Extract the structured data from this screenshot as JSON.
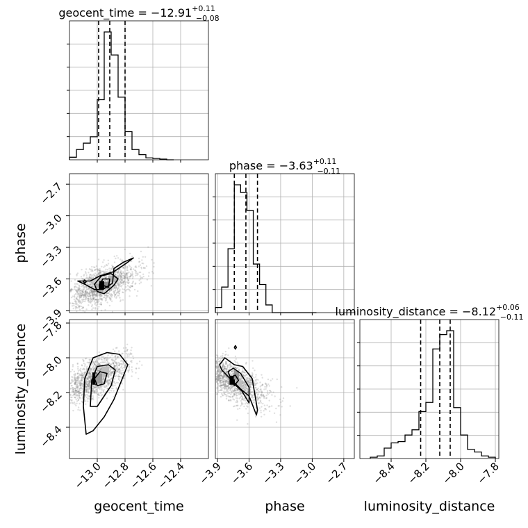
{
  "chart_data": {
    "type": "corner",
    "parameters": [
      "geocent_time",
      "phase",
      "luminosity_distance"
    ],
    "titles": [
      {
        "param": "geocent_time",
        "label": "geocent_time = −12.91",
        "plus": "+0.11",
        "minus": "−0.08",
        "median": -12.91,
        "q_low": -12.99,
        "q_high": -12.8
      },
      {
        "param": "phase",
        "label": "phase = −3.63",
        "plus": "+0.11",
        "minus": "−0.11",
        "median": -3.63,
        "q_low": -3.74,
        "q_high": -3.52
      },
      {
        "param": "luminosity_distance",
        "label": "luminosity_distance = −8.12",
        "plus": "+0.06",
        "minus": "−0.11",
        "median": -8.12,
        "q_low": -8.23,
        "q_high": -8.06
      }
    ],
    "ranges": {
      "geocent_time": [
        -13.2,
        -12.2
      ],
      "phase": [
        -3.92,
        -2.6
      ],
      "luminosity_distance": [
        -8.58,
        -7.78
      ]
    },
    "ticks": {
      "geocent_time": [
        -13.0,
        -12.8,
        -12.6,
        -12.4
      ],
      "phase": [
        -3.9,
        -3.6,
        -3.3,
        -3.0,
        -2.7
      ],
      "luminosity_distance": [
        -8.4,
        -8.2,
        -8.0,
        -7.8
      ]
    },
    "tick_labels": {
      "geocent_time": [
        "−13.0",
        "−12.8",
        "−12.6",
        "−12.4"
      ],
      "phase": [
        "−3.9",
        "−3.6",
        "−3.3",
        "−3.0",
        "−2.7"
      ],
      "luminosity_distance": [
        "−8.4",
        "−8.2",
        "−8.0",
        "−7.8"
      ]
    },
    "axis_labels": {
      "geocent_time": "geocent_time",
      "phase": "phase",
      "luminosity_distance": "luminosity_distance"
    },
    "histograms": {
      "geocent_time": {
        "edges": [
          -13.2,
          -13.15,
          -13.1,
          -13.05,
          -13.0,
          -12.95,
          -12.9,
          -12.85,
          -12.8,
          -12.75,
          -12.7,
          -12.65,
          -12.6,
          -12.55,
          -12.5,
          -12.45
        ],
        "counts": [
          0.02,
          0.08,
          0.13,
          0.18,
          0.47,
          1.0,
          0.82,
          0.49,
          0.22,
          0.08,
          0.04,
          0.015,
          0.01,
          0.005,
          0.0
        ]
      },
      "phase": {
        "edges": [
          -3.92,
          -3.86,
          -3.8,
          -3.74,
          -3.68,
          -3.62,
          -3.56,
          -3.5,
          -3.44,
          -3.38,
          -3.32,
          -3.26,
          -3.2,
          -3.14,
          -3.08,
          -3.02,
          -2.96
        ],
        "counts": [
          0.04,
          0.2,
          0.5,
          1.0,
          0.94,
          0.8,
          0.38,
          0.22,
          0.06,
          0.0,
          0.0,
          0.0,
          0.0,
          0.0,
          0.0,
          0.0
        ]
      },
      "luminosity_distance": {
        "edges": [
          -8.52,
          -8.48,
          -8.44,
          -8.4,
          -8.36,
          -8.32,
          -8.28,
          -8.24,
          -8.2,
          -8.16,
          -8.12,
          -8.08,
          -8.04,
          -8.0,
          -7.96,
          -7.92,
          -7.88,
          -7.84,
          -7.8
        ],
        "counts": [
          0.01,
          0.02,
          0.08,
          0.12,
          0.13,
          0.18,
          0.22,
          0.36,
          0.43,
          0.84,
          0.95,
          0.98,
          0.39,
          0.18,
          0.07,
          0.05,
          0.02,
          0.01
        ]
      }
    },
    "pairs": [
      {
        "x": "geocent_time",
        "y": "phase",
        "dense_cells": [
          {
            "x": -12.97,
            "y": -3.66,
            "w": 0.04,
            "h": 0.08,
            "shade": 0.0
          },
          {
            "x": -12.93,
            "y": -3.66,
            "w": 0.04,
            "h": 0.06,
            "shade": 0.55
          },
          {
            "x": -12.89,
            "y": -3.6,
            "w": 0.06,
            "h": 0.06,
            "shade": 0.7
          },
          {
            "x": -13.01,
            "y": -3.62,
            "w": 0.05,
            "h": 0.05,
            "shade": 0.8
          }
        ],
        "contours": [
          [
            [
              -13.14,
              -3.62
            ],
            [
              -13.05,
              -3.62
            ],
            [
              -12.98,
              -3.57
            ],
            [
              -12.88,
              -3.53
            ],
            [
              -12.79,
              -3.45
            ],
            [
              -12.74,
              -3.4
            ],
            [
              -12.81,
              -3.44
            ],
            [
              -12.88,
              -3.5
            ],
            [
              -12.89,
              -3.64
            ],
            [
              -12.96,
              -3.7
            ],
            [
              -13.02,
              -3.7
            ],
            [
              -13.09,
              -3.65
            ],
            [
              -13.14,
              -3.62
            ]
          ],
          [
            [
              -13.02,
              -3.65
            ],
            [
              -12.97,
              -3.57
            ],
            [
              -12.9,
              -3.55
            ],
            [
              -12.85,
              -3.6
            ],
            [
              -12.88,
              -3.66
            ],
            [
              -12.95,
              -3.74
            ],
            [
              -13.0,
              -3.72
            ],
            [
              -13.02,
              -3.65
            ]
          ],
          [
            [
              -12.98,
              -3.65
            ],
            [
              -12.96,
              -3.6
            ],
            [
              -12.91,
              -3.6
            ],
            [
              -12.92,
              -3.68
            ],
            [
              -12.98,
              -3.65
            ]
          ],
          [
            [
              -13.1,
              -3.625
            ],
            [
              -13.09,
              -3.61
            ],
            [
              -13.08,
              -3.625
            ],
            [
              -13.09,
              -3.64
            ],
            [
              -13.1,
              -3.625
            ]
          ]
        ],
        "scatter_box": {
          "x": [
            -13.2,
            -12.2
          ],
          "y": [
            -3.92,
            -3.3
          ],
          "trend": "rising"
        }
      },
      {
        "x": "geocent_time",
        "y": "luminosity_distance",
        "dense_cells": [
          {
            "x": -13.02,
            "y": -8.12,
            "w": 0.03,
            "h": 0.07,
            "shade": 0.0
          },
          {
            "x": -12.99,
            "y": -8.12,
            "w": 0.05,
            "h": 0.06,
            "shade": 0.6
          },
          {
            "x": -12.94,
            "y": -8.08,
            "w": 0.05,
            "h": 0.06,
            "shade": 0.75
          }
        ],
        "contours": [
          [
            [
              -13.08,
              -8.44
            ],
            [
              -13.1,
              -8.28
            ],
            [
              -13.09,
              -8.12
            ],
            [
              -13.03,
              -8.0
            ],
            [
              -12.93,
              -7.97
            ],
            [
              -12.84,
              -7.98
            ],
            [
              -12.78,
              -8.04
            ],
            [
              -12.83,
              -8.14
            ],
            [
              -12.88,
              -8.24
            ],
            [
              -12.95,
              -8.34
            ],
            [
              -13.03,
              -8.42
            ],
            [
              -13.08,
              -8.44
            ]
          ],
          [
            [
              -13.05,
              -8.28
            ],
            [
              -13.04,
              -8.13
            ],
            [
              -13.0,
              -8.05
            ],
            [
              -12.92,
              -8.04
            ],
            [
              -12.87,
              -8.07
            ],
            [
              -12.9,
              -8.16
            ],
            [
              -12.95,
              -8.22
            ],
            [
              -13.0,
              -8.28
            ],
            [
              -13.05,
              -8.28
            ]
          ],
          [
            [
              -13.02,
              -8.12
            ],
            [
              -12.98,
              -8.08
            ],
            [
              -12.93,
              -8.09
            ],
            [
              -12.95,
              -8.15
            ],
            [
              -13.0,
              -8.16
            ],
            [
              -13.02,
              -8.12
            ]
          ]
        ],
        "scatter_box": {
          "x": [
            -13.2,
            -12.2
          ],
          "y": [
            -8.58,
            -7.78
          ],
          "trend": "rising"
        }
      },
      {
        "x": "phase",
        "y": "luminosity_distance",
        "dense_cells": [
          {
            "x": -3.76,
            "y": -8.13,
            "w": 0.05,
            "h": 0.05,
            "shade": 0.0
          },
          {
            "x": -3.72,
            "y": -8.1,
            "w": 0.05,
            "h": 0.05,
            "shade": 0.6
          },
          {
            "x": -3.69,
            "y": -8.15,
            "w": 0.05,
            "h": 0.04,
            "shade": 0.75
          }
        ],
        "contours": [
          [
            [
              -3.88,
              -8.04
            ],
            [
              -3.83,
              -8.0
            ],
            [
              -3.74,
              -8.04
            ],
            [
              -3.66,
              -8.05
            ],
            [
              -3.57,
              -8.12
            ],
            [
              -3.52,
              -8.3
            ],
            [
              -3.53,
              -8.33
            ],
            [
              -3.6,
              -8.22
            ],
            [
              -3.68,
              -8.18
            ],
            [
              -3.78,
              -8.12
            ],
            [
              -3.86,
              -8.07
            ],
            [
              -3.88,
              -8.04
            ]
          ],
          [
            [
              -3.8,
              -8.08
            ],
            [
              -3.75,
              -8.06
            ],
            [
              -3.68,
              -8.09
            ],
            [
              -3.6,
              -8.17
            ],
            [
              -3.6,
              -8.26
            ],
            [
              -3.67,
              -8.19
            ],
            [
              -3.76,
              -8.14
            ],
            [
              -3.8,
              -8.08
            ]
          ],
          [
            [
              -3.77,
              -8.11
            ],
            [
              -3.73,
              -8.1
            ],
            [
              -3.7,
              -8.13
            ],
            [
              -3.74,
              -8.16
            ],
            [
              -3.77,
              -8.11
            ]
          ],
          [
            [
              -3.74,
              -7.94
            ],
            [
              -3.73,
              -7.93
            ],
            [
              -3.72,
              -7.94
            ],
            [
              -3.73,
              -7.95
            ],
            [
              -3.74,
              -7.94
            ]
          ]
        ],
        "scatter_box": {
          "x": [
            -3.92,
            -3.3
          ],
          "y": [
            -8.58,
            -7.8
          ],
          "trend": "falling"
        }
      }
    ],
    "colors": {
      "line": "#000000",
      "grid": "#b0b0b0",
      "points": "#808080"
    },
    "grid": true
  }
}
